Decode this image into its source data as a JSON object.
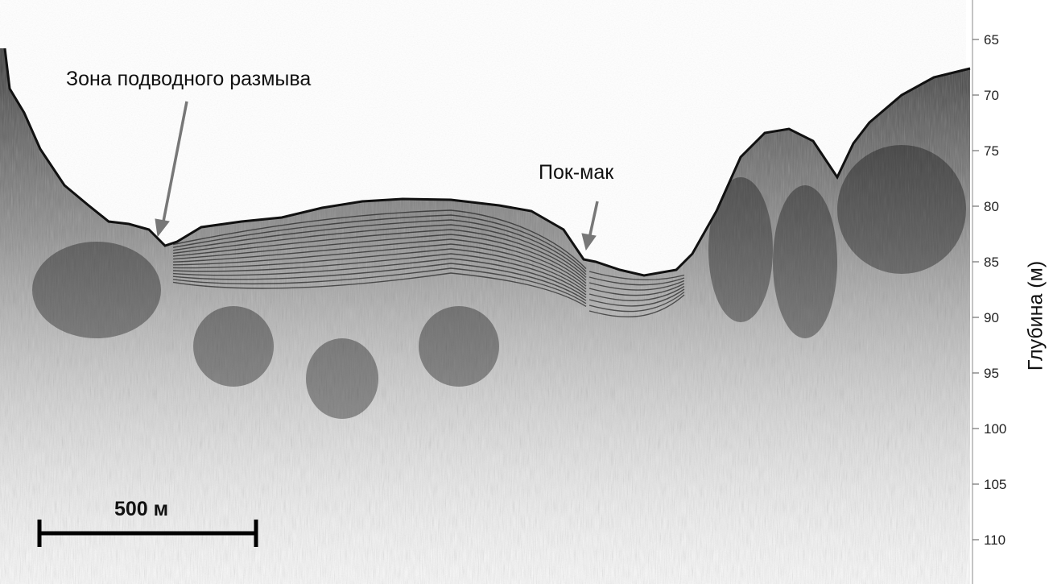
{
  "annotations": {
    "erosion_zone": "Зона подводного размыва",
    "pockmark": "Пок-мак"
  },
  "scale_bar": {
    "label": "500 м"
  },
  "depth_axis": {
    "title": "Глубина (м)",
    "ticks": [
      "65",
      "70",
      "75",
      "80",
      "85",
      "90",
      "95",
      "100",
      "105",
      "110"
    ],
    "range_m": [
      61.5,
      113.5
    ]
  },
  "colors": {
    "reflector": "#111111",
    "background": "#ffffff",
    "annotation_arrow": "#777777"
  }
}
